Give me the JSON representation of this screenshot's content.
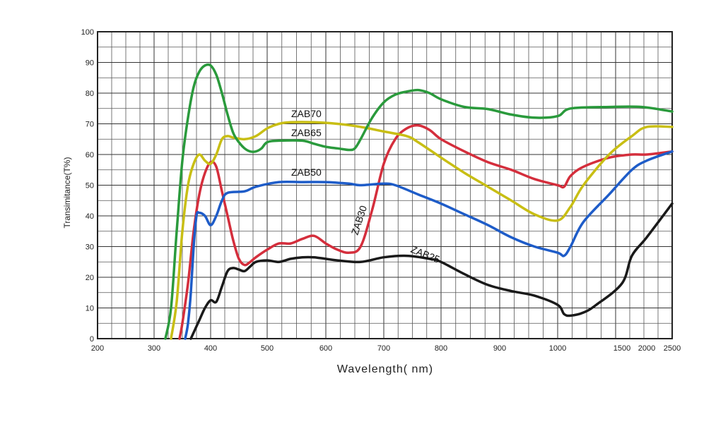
{
  "chart_data": {
    "type": "line",
    "xlabel": "Wavelength( nm)",
    "ylabel": "Transimitance(T%)",
    "x_ticks": [
      "200",
      "300",
      "400",
      "500",
      "600",
      "700",
      "800",
      "900",
      "1000",
      "1500",
      "2000",
      "2500"
    ],
    "y_ticks": [
      "0",
      "10",
      "20",
      "30",
      "40",
      "50",
      "60",
      "70",
      "80",
      "90",
      "100"
    ],
    "xlim": [
      "200",
      "2500"
    ],
    "ylim": [
      0,
      100
    ],
    "grid": true,
    "series": [
      {
        "name": "ZAB70",
        "color": "#2a9a3c",
        "points": [
          [
            320,
            0
          ],
          [
            330,
            10
          ],
          [
            340,
            35
          ],
          [
            350,
            58
          ],
          [
            360,
            72
          ],
          [
            370,
            82
          ],
          [
            380,
            87
          ],
          [
            390,
            89
          ],
          [
            400,
            89
          ],
          [
            410,
            86
          ],
          [
            420,
            80
          ],
          [
            430,
            73
          ],
          [
            440,
            67
          ],
          [
            450,
            64
          ],
          [
            460,
            62
          ],
          [
            470,
            61
          ],
          [
            480,
            61
          ],
          [
            490,
            62
          ],
          [
            500,
            64
          ],
          [
            520,
            64.5
          ],
          [
            560,
            64.5
          ],
          [
            580,
            63.5
          ],
          [
            600,
            62.5
          ],
          [
            620,
            62
          ],
          [
            640,
            61.5
          ],
          [
            650,
            62
          ],
          [
            660,
            65
          ],
          [
            680,
            72
          ],
          [
            700,
            77
          ],
          [
            720,
            79.5
          ],
          [
            740,
            80.5
          ],
          [
            760,
            81
          ],
          [
            780,
            80
          ],
          [
            800,
            78
          ],
          [
            840,
            75.5
          ],
          [
            880,
            74.8
          ],
          [
            920,
            73
          ],
          [
            960,
            72
          ],
          [
            1000,
            72.5
          ],
          [
            1100,
            75
          ],
          [
            1400,
            75.5
          ],
          [
            1900,
            75.5
          ],
          [
            2500,
            74
          ]
        ]
      },
      {
        "name": "ZAB65",
        "color": "#c8be14",
        "points": [
          [
            330,
            0
          ],
          [
            340,
            12
          ],
          [
            350,
            35
          ],
          [
            360,
            50
          ],
          [
            370,
            57
          ],
          [
            380,
            60
          ],
          [
            390,
            58
          ],
          [
            400,
            57
          ],
          [
            410,
            60
          ],
          [
            420,
            65
          ],
          [
            430,
            66
          ],
          [
            440,
            65.5
          ],
          [
            460,
            65
          ],
          [
            480,
            66
          ],
          [
            500,
            68.5
          ],
          [
            520,
            70
          ],
          [
            540,
            70.5
          ],
          [
            580,
            70.5
          ],
          [
            620,
            70
          ],
          [
            660,
            69
          ],
          [
            700,
            67.5
          ],
          [
            740,
            66
          ],
          [
            760,
            64
          ],
          [
            800,
            59
          ],
          [
            840,
            54
          ],
          [
            880,
            49.5
          ],
          [
            920,
            45
          ],
          [
            960,
            40.5
          ],
          [
            1000,
            38.5
          ],
          [
            1100,
            43
          ],
          [
            1200,
            50
          ],
          [
            1400,
            60
          ],
          [
            1700,
            66
          ],
          [
            2000,
            69
          ],
          [
            2500,
            69
          ]
        ]
      },
      {
        "name": "ZAB50",
        "color": "#1e5cc8",
        "points": [
          [
            355,
            0
          ],
          [
            360,
            5
          ],
          [
            365,
            15
          ],
          [
            370,
            30
          ],
          [
            375,
            40
          ],
          [
            380,
            41
          ],
          [
            390,
            40
          ],
          [
            400,
            37
          ],
          [
            410,
            40
          ],
          [
            420,
            45
          ],
          [
            430,
            47.5
          ],
          [
            460,
            48
          ],
          [
            480,
            49.5
          ],
          [
            520,
            51
          ],
          [
            560,
            51
          ],
          [
            600,
            51
          ],
          [
            640,
            50.5
          ],
          [
            660,
            50
          ],
          [
            700,
            50.5
          ],
          [
            720,
            50
          ],
          [
            760,
            47
          ],
          [
            800,
            44
          ],
          [
            840,
            40.5
          ],
          [
            880,
            37
          ],
          [
            920,
            33
          ],
          [
            960,
            30
          ],
          [
            1000,
            28
          ],
          [
            1050,
            27
          ],
          [
            1100,
            30
          ],
          [
            1200,
            38
          ],
          [
            1400,
            47
          ],
          [
            1700,
            55
          ],
          [
            2000,
            58
          ],
          [
            2500,
            61
          ]
        ]
      },
      {
        "name": "ZAB30",
        "color": "#d42e3c",
        "points": [
          [
            345,
            0
          ],
          [
            350,
            5
          ],
          [
            360,
            18
          ],
          [
            370,
            35
          ],
          [
            380,
            47
          ],
          [
            390,
            54
          ],
          [
            400,
            57.5
          ],
          [
            410,
            56
          ],
          [
            420,
            48
          ],
          [
            430,
            40
          ],
          [
            440,
            32
          ],
          [
            450,
            26
          ],
          [
            460,
            24
          ],
          [
            470,
            25
          ],
          [
            480,
            26.5
          ],
          [
            500,
            29
          ],
          [
            520,
            31
          ],
          [
            540,
            31
          ],
          [
            560,
            32.5
          ],
          [
            580,
            33.5
          ],
          [
            600,
            31
          ],
          [
            620,
            29
          ],
          [
            640,
            28
          ],
          [
            660,
            30
          ],
          [
            680,
            42
          ],
          [
            700,
            57
          ],
          [
            720,
            65
          ],
          [
            740,
            68.5
          ],
          [
            760,
            69.5
          ],
          [
            780,
            68
          ],
          [
            800,
            65
          ],
          [
            840,
            61
          ],
          [
            880,
            57.5
          ],
          [
            920,
            55
          ],
          [
            960,
            52
          ],
          [
            1000,
            50
          ],
          [
            1050,
            49.5
          ],
          [
            1100,
            53
          ],
          [
            1200,
            56
          ],
          [
            1400,
            59
          ],
          [
            1700,
            60
          ],
          [
            2000,
            60
          ],
          [
            2500,
            61
          ]
        ]
      },
      {
        "name": "ZAB25",
        "color": "#1a1a1a",
        "points": [
          [
            365,
            0
          ],
          [
            370,
            2
          ],
          [
            380,
            6
          ],
          [
            390,
            10
          ],
          [
            400,
            12.5
          ],
          [
            410,
            12
          ],
          [
            420,
            17
          ],
          [
            430,
            22
          ],
          [
            440,
            23
          ],
          [
            450,
            22.5
          ],
          [
            460,
            22
          ],
          [
            470,
            23.5
          ],
          [
            480,
            25
          ],
          [
            500,
            25.5
          ],
          [
            520,
            25
          ],
          [
            540,
            26
          ],
          [
            560,
            26.5
          ],
          [
            580,
            26.5
          ],
          [
            600,
            26
          ],
          [
            620,
            25.5
          ],
          [
            660,
            25
          ],
          [
            700,
            26.5
          ],
          [
            740,
            27
          ],
          [
            780,
            26
          ],
          [
            800,
            25
          ],
          [
            840,
            21
          ],
          [
            880,
            17.5
          ],
          [
            920,
            15.5
          ],
          [
            960,
            14
          ],
          [
            1000,
            11
          ],
          [
            1050,
            8
          ],
          [
            1100,
            7.5
          ],
          [
            1200,
            8.5
          ],
          [
            1300,
            11
          ],
          [
            1500,
            18
          ],
          [
            1700,
            27
          ],
          [
            2000,
            33
          ],
          [
            2500,
            44
          ]
        ]
      }
    ],
    "annotations": [
      {
        "text": "ZAB70",
        "series": "ZAB70"
      },
      {
        "text": "ZAB65",
        "series": "ZAB65"
      },
      {
        "text": "ZAB50",
        "series": "ZAB50"
      },
      {
        "text": "ZAB30",
        "series": "ZAB30"
      },
      {
        "text": "ZAB25",
        "series": "ZAB25"
      }
    ]
  }
}
